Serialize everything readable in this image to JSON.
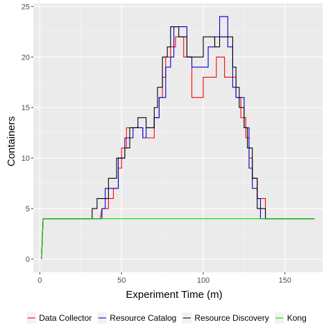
{
  "chart_data": {
    "type": "line",
    "xlabel": "Experiment Time (m)",
    "ylabel": "Containers",
    "xlim": [
      -4,
      173
    ],
    "ylim": [
      -1.3,
      25.3
    ],
    "x_ticks": [
      0,
      50,
      100,
      150
    ],
    "y_ticks": [
      0,
      5,
      10,
      15,
      20,
      25
    ],
    "grid": true,
    "legend_position": "bottom",
    "series": [
      {
        "name": "Data Collector",
        "color": "#ff0000",
        "points": [
          [
            1,
            0
          ],
          [
            2,
            4
          ],
          [
            36,
            4
          ],
          [
            37,
            4
          ],
          [
            38,
            5
          ],
          [
            42,
            5
          ],
          [
            42,
            6
          ],
          [
            45,
            6
          ],
          [
            45,
            7
          ],
          [
            48,
            7
          ],
          [
            48,
            9
          ],
          [
            50,
            9
          ],
          [
            50,
            11
          ],
          [
            53,
            11
          ],
          [
            53,
            13
          ],
          [
            63,
            13
          ],
          [
            63,
            12
          ],
          [
            70,
            12
          ],
          [
            70,
            14
          ],
          [
            73,
            14
          ],
          [
            73,
            16
          ],
          [
            75,
            16
          ],
          [
            75,
            18
          ],
          [
            77,
            18
          ],
          [
            77,
            20
          ],
          [
            80,
            20
          ],
          [
            80,
            21
          ],
          [
            83,
            21
          ],
          [
            83,
            22
          ],
          [
            88,
            22
          ],
          [
            88,
            20
          ],
          [
            93,
            20
          ],
          [
            93,
            16
          ],
          [
            100,
            16
          ],
          [
            100,
            18
          ],
          [
            108,
            18
          ],
          [
            108,
            20
          ],
          [
            113,
            20
          ],
          [
            113,
            18
          ],
          [
            120,
            18
          ],
          [
            120,
            16
          ],
          [
            123,
            16
          ],
          [
            123,
            14
          ],
          [
            126,
            14
          ],
          [
            126,
            12
          ],
          [
            128,
            12
          ],
          [
            128,
            10
          ],
          [
            130,
            10
          ],
          [
            130,
            8
          ],
          [
            133,
            8
          ],
          [
            133,
            6
          ],
          [
            138,
            6
          ],
          [
            138,
            4
          ],
          [
            168,
            4
          ]
        ]
      },
      {
        "name": "Resource Catalog",
        "color": "#0000cc",
        "points": [
          [
            1,
            0
          ],
          [
            2,
            4
          ],
          [
            38,
            4
          ],
          [
            38,
            5
          ],
          [
            40,
            5
          ],
          [
            40,
            7
          ],
          [
            48,
            7
          ],
          [
            48,
            10
          ],
          [
            52,
            10
          ],
          [
            52,
            12
          ],
          [
            57,
            12
          ],
          [
            57,
            13
          ],
          [
            63,
            13
          ],
          [
            63,
            12
          ],
          [
            65,
            12
          ],
          [
            65,
            13
          ],
          [
            70,
            13
          ],
          [
            70,
            14
          ],
          [
            73,
            14
          ],
          [
            73,
            16
          ],
          [
            77,
            16
          ],
          [
            77,
            19
          ],
          [
            80,
            19
          ],
          [
            80,
            20
          ],
          [
            82,
            20
          ],
          [
            82,
            23
          ],
          [
            90,
            23
          ],
          [
            90,
            20
          ],
          [
            93,
            20
          ],
          [
            93,
            19
          ],
          [
            103,
            19
          ],
          [
            103,
            21
          ],
          [
            107,
            21
          ],
          [
            107,
            22
          ],
          [
            110,
            22
          ],
          [
            110,
            24
          ],
          [
            115,
            24
          ],
          [
            115,
            21
          ],
          [
            118,
            21
          ],
          [
            118,
            17
          ],
          [
            120,
            17
          ],
          [
            120,
            16
          ],
          [
            125,
            16
          ],
          [
            125,
            13
          ],
          [
            128,
            13
          ],
          [
            128,
            9
          ],
          [
            130,
            9
          ],
          [
            130,
            7
          ],
          [
            133,
            7
          ],
          [
            133,
            6
          ],
          [
            135,
            6
          ],
          [
            135,
            4
          ],
          [
            168,
            4
          ]
        ]
      },
      {
        "name": "Resource Discovery",
        "color": "#000000",
        "points": [
          [
            1,
            0
          ],
          [
            2,
            4
          ],
          [
            32,
            4
          ],
          [
            32,
            5
          ],
          [
            35,
            5
          ],
          [
            35,
            6
          ],
          [
            42,
            6
          ],
          [
            42,
            8
          ],
          [
            47,
            8
          ],
          [
            47,
            10
          ],
          [
            52,
            10
          ],
          [
            52,
            11
          ],
          [
            55,
            11
          ],
          [
            55,
            13
          ],
          [
            60,
            13
          ],
          [
            60,
            14
          ],
          [
            65,
            14
          ],
          [
            65,
            13
          ],
          [
            70,
            13
          ],
          [
            70,
            15
          ],
          [
            72,
            15
          ],
          [
            72,
            17
          ],
          [
            75,
            17
          ],
          [
            75,
            20
          ],
          [
            78,
            20
          ],
          [
            78,
            21
          ],
          [
            80,
            21
          ],
          [
            80,
            23
          ],
          [
            85,
            23
          ],
          [
            85,
            22
          ],
          [
            90,
            22
          ],
          [
            90,
            20
          ],
          [
            100,
            20
          ],
          [
            100,
            22
          ],
          [
            107,
            22
          ],
          [
            107,
            21
          ],
          [
            110,
            21
          ],
          [
            110,
            22
          ],
          [
            118,
            22
          ],
          [
            118,
            19
          ],
          [
            120,
            19
          ],
          [
            120,
            17
          ],
          [
            122,
            17
          ],
          [
            122,
            15
          ],
          [
            125,
            15
          ],
          [
            125,
            13
          ],
          [
            127,
            13
          ],
          [
            127,
            11
          ],
          [
            130,
            11
          ],
          [
            130,
            8
          ],
          [
            133,
            8
          ],
          [
            133,
            5
          ],
          [
            138,
            5
          ],
          [
            138,
            4
          ],
          [
            168,
            4
          ]
        ]
      },
      {
        "name": "Kong",
        "color": "#00dd00",
        "points": [
          [
            1,
            0
          ],
          [
            2,
            4
          ],
          [
            168,
            4
          ]
        ]
      }
    ]
  }
}
